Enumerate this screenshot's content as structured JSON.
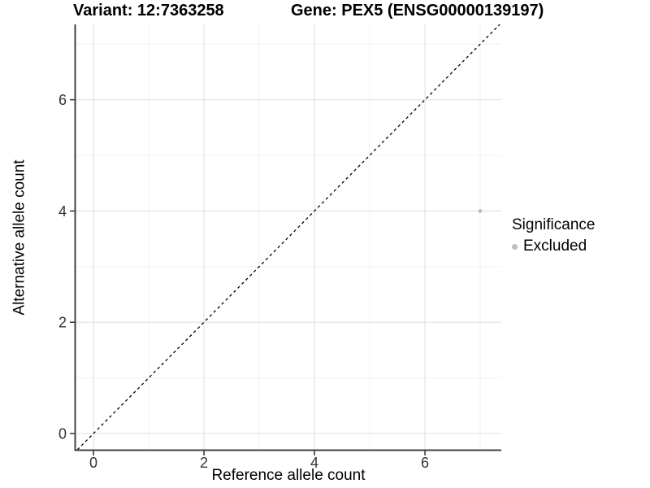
{
  "titles": {
    "variant": "Variant: 12:7363258",
    "gene": "Gene: PEX5 (ENSG00000139197)"
  },
  "chart_data": {
    "type": "scatter",
    "title_left": "Variant: 12:7363258",
    "title_right": "Gene: PEX5 (ENSG00000139197)",
    "xlabel": "Reference allele count",
    "ylabel": "Alternative allele count",
    "xlim": [
      -0.324,
      7.382
    ],
    "ylim": [
      -0.292,
      7.354
    ],
    "x_ticks": {
      "major": [
        0,
        2,
        4,
        6
      ],
      "minor": [
        1,
        3,
        5,
        7
      ],
      "labels": [
        "0",
        "2",
        "4",
        "6"
      ]
    },
    "y_ticks": {
      "major": [
        0,
        2,
        4,
        6
      ],
      "minor": [
        1,
        3,
        5,
        7
      ],
      "labels": [
        "0",
        "2",
        "4",
        "6"
      ]
    },
    "grid": {
      "on": true,
      "major_color": "#e5e5e5",
      "minor_color": "#f0f0f0"
    },
    "reference_line": {
      "type": "identity",
      "slope": 1,
      "intercept": 0,
      "linestyle": "dashed",
      "color": "#000000"
    },
    "series": [
      {
        "name": "Excluded",
        "color": "#bdbdbd",
        "point_radius": 2.4,
        "points": [
          {
            "x": 7,
            "y": 4
          }
        ]
      }
    ],
    "legend": {
      "position": "right",
      "title": "Significance",
      "items": [
        {
          "label": "Excluded",
          "color": "#bdbdbd"
        }
      ]
    },
    "style": {
      "axis_line_color": "#404040",
      "tick_mark_color": "#333333",
      "tick_label_color": "#333333",
      "panel_background": "#ffffff"
    }
  }
}
